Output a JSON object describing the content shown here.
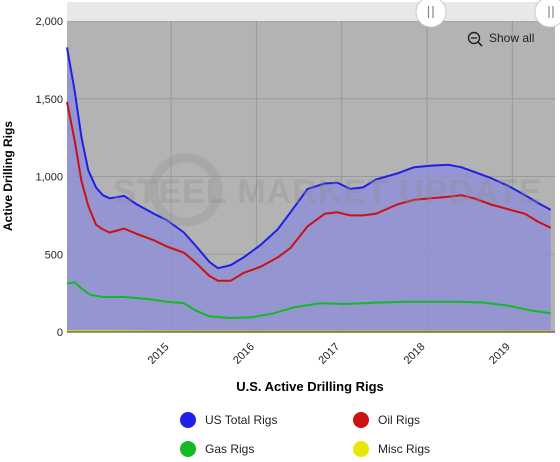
{
  "chart_data": {
    "type": "area",
    "title": "",
    "xlabel": "U.S. Active Drilling Rigs",
    "ylabel": "Active Drilling Rigs",
    "xlim": [
      2014.33,
      2020.05
    ],
    "ylim": [
      0,
      2000
    ],
    "x_ticks": [
      2015,
      2016,
      2017,
      2018,
      2019
    ],
    "y_ticks": [
      0,
      500,
      1000,
      1500,
      2000
    ],
    "y_tick_labels": [
      "0",
      "500",
      "1,000",
      "1,500",
      "2,000"
    ],
    "grid": true,
    "legend_position": "bottom",
    "series": [
      {
        "name": "US Total Rigs",
        "color": "#1f1fe6",
        "fill": "#8f8fd6",
        "x": [
          2014.33,
          2014.42,
          2014.5,
          2014.58,
          2014.67,
          2014.75,
          2014.83,
          2015.0,
          2015.15,
          2015.35,
          2015.5,
          2015.7,
          2015.83,
          2016.0,
          2016.1,
          2016.25,
          2016.4,
          2016.6,
          2016.8,
          2016.95,
          2017.15,
          2017.35,
          2017.5,
          2017.65,
          2017.8,
          2017.95,
          2018.2,
          2018.4,
          2018.6,
          2018.8,
          2018.95,
          2019.1,
          2019.3,
          2019.5,
          2019.7,
          2019.85,
          2020.0
        ],
        "values": [
          1830,
          1550,
          1250,
          1040,
          930,
          880,
          860,
          875,
          820,
          760,
          720,
          640,
          560,
          450,
          410,
          430,
          480,
          560,
          660,
          770,
          920,
          955,
          960,
          920,
          930,
          980,
          1020,
          1060,
          1070,
          1075,
          1060,
          1030,
          990,
          940,
          880,
          830,
          785
        ]
      },
      {
        "name": "Oil Rigs",
        "color": "#cc1111",
        "x": [
          2014.33,
          2014.42,
          2014.5,
          2014.58,
          2014.67,
          2014.75,
          2014.83,
          2015.0,
          2015.15,
          2015.35,
          2015.5,
          2015.7,
          2015.83,
          2016.0,
          2016.1,
          2016.25,
          2016.4,
          2016.6,
          2016.8,
          2016.95,
          2017.15,
          2017.35,
          2017.5,
          2017.65,
          2017.8,
          2017.95,
          2018.2,
          2018.4,
          2018.6,
          2018.8,
          2018.95,
          2019.1,
          2019.3,
          2019.5,
          2019.7,
          2019.85,
          2020.0
        ],
        "values": [
          1480,
          1230,
          970,
          810,
          690,
          660,
          640,
          665,
          630,
          590,
          550,
          510,
          450,
          360,
          330,
          330,
          380,
          420,
          480,
          540,
          680,
          760,
          770,
          750,
          750,
          760,
          820,
          850,
          860,
          870,
          880,
          860,
          820,
          790,
          760,
          710,
          670
        ]
      },
      {
        "name": "Gas Rigs",
        "color": "#11bb22",
        "x": [
          2014.33,
          2014.42,
          2014.5,
          2014.6,
          2014.75,
          2015.0,
          2015.3,
          2015.5,
          2015.7,
          2015.83,
          2016.0,
          2016.25,
          2016.5,
          2016.75,
          2017.0,
          2017.3,
          2017.6,
          2017.8,
          2018.0,
          2018.3,
          2018.6,
          2018.9,
          2019.2,
          2019.5,
          2019.75,
          2020.0
        ],
        "values": [
          310,
          320,
          280,
          240,
          225,
          225,
          210,
          195,
          185,
          140,
          100,
          90,
          95,
          120,
          160,
          185,
          180,
          185,
          190,
          195,
          195,
          195,
          190,
          170,
          140,
          120
        ]
      },
      {
        "name": "Misc Rigs",
        "color": "#e6e600",
        "x": [
          2014.33,
          2014.8,
          2015.2,
          2016.0,
          2017.0,
          2018.0,
          2019.0,
          2020.0
        ],
        "values": [
          5,
          5,
          3,
          2,
          2,
          2,
          2,
          2
        ]
      }
    ]
  },
  "watermark": {
    "text": "STEEL MARKET UPDATE"
  },
  "toolbar": {
    "show_all_label": "Show all",
    "zoom_icon": "zoom-out-icon",
    "scroll_handle_icon": "grip-icon"
  },
  "colors": {
    "plot_background": "#b3b3b3",
    "gridline": "#999999"
  }
}
